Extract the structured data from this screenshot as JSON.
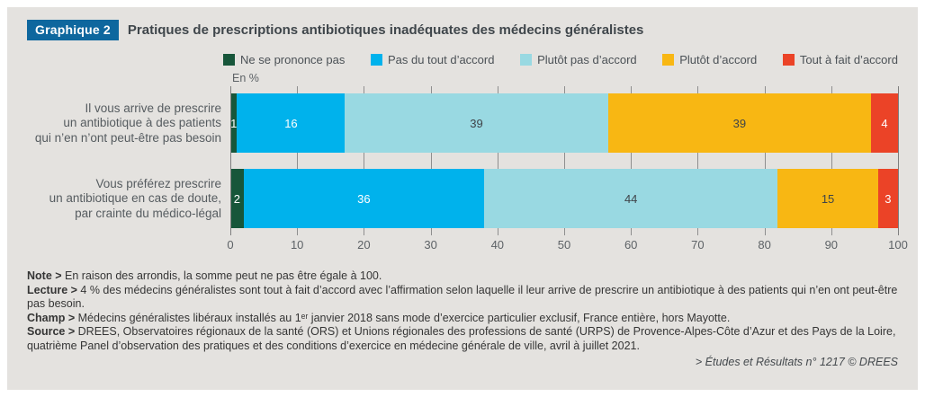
{
  "header": {
    "badge": "Graphique 2",
    "title": "Pratiques de prescriptions antibiotiques inadéquates des médecins généralistes"
  },
  "chart_data": {
    "type": "bar",
    "orientation": "horizontal",
    "stacked": true,
    "axis_unit": "En %",
    "xlim": [
      0,
      100
    ],
    "x_ticks": [
      0,
      10,
      20,
      30,
      40,
      50,
      60,
      70,
      80,
      90,
      100
    ],
    "grid": "vertical ticks above bars, between bars and below bars",
    "legend_position": "top",
    "categories": [
      "Il vous arrive de prescrire\nun antibiotique à des patients\nqui n’en n’ont peut-être pas besoin",
      "Vous préférez prescrire\nun antibiotique en cas de doute,\npar crainte du médico-légal"
    ],
    "series": [
      {
        "name": "Ne se prononce pas",
        "color": "#17563a",
        "text_color": "#ffffff",
        "values": [
          1,
          2
        ]
      },
      {
        "name": "Pas du tout d’accord",
        "color": "#00b2ec",
        "text_color": "#ffffff",
        "values": [
          16,
          36
        ]
      },
      {
        "name": "Plutôt pas d’accord",
        "color": "#99d9e2",
        "text_color": "#3f4449",
        "values": [
          39,
          44
        ]
      },
      {
        "name": "Plutôt d’accord",
        "color": "#f8b713",
        "text_color": "#3f4449",
        "values": [
          39,
          15
        ]
      },
      {
        "name": "Tout à fait d’accord",
        "color": "#eb4327",
        "text_color": "#ffffff",
        "values": [
          4,
          3
        ]
      }
    ]
  },
  "notes": [
    {
      "label": "Note >",
      "text": "En raison des arrondis, la somme peut ne pas être égale à 100."
    },
    {
      "label": "Lecture >",
      "text": "4 % des médecins généralistes sont tout à fait d’accord avec l’affirmation selon laquelle il leur arrive de prescrire un antibiotique à des patients qui n’en ont peut-être pas besoin."
    },
    {
      "label": "Champ >",
      "text": "Médecins généralistes libéraux installés au 1ᵉʳ janvier 2018 sans mode d’exercice particulier exclusif, France entière, hors Mayotte."
    },
    {
      "label": "Source >",
      "text": "DREES, Observatoires régionaux de la santé (ORS) et Unions régionales des professions de santé (URPS) de Provence-Alpes-Côte d’Azur et des Pays de la Loire, quatrième Panel d’observation des pratiques et des conditions d’exercice en médecine générale de ville, avril à juillet 2021."
    }
  ],
  "footer": {
    "prefix": "> ",
    "italic_title": "Études et Résultats",
    "rest": " n° 1217 © DREES"
  },
  "colors": {
    "card_background": "#e4e2df",
    "badge_background": "#0e679e",
    "gridline": "#8f8f8f"
  }
}
